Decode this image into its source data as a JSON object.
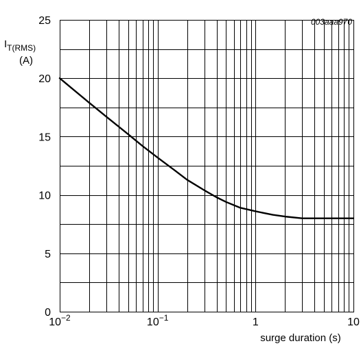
{
  "chart_data": {
    "type": "line",
    "reference_code": "003aaa970",
    "ylabel": {
      "main": "I",
      "subscript": "T(RMS)",
      "unit": "(A)"
    },
    "xlabel": "surge duration (s)",
    "x_scale": "log",
    "xlim": [
      0.01,
      10
    ],
    "ylim": [
      0,
      25
    ],
    "grid": true,
    "x_ticks": [
      {
        "value": 0.01,
        "base": "10",
        "exp": "−2"
      },
      {
        "value": 0.1,
        "base": "10",
        "exp": "−1"
      },
      {
        "value": 1,
        "base": "1",
        "exp": ""
      },
      {
        "value": 10,
        "base": "10",
        "exp": ""
      }
    ],
    "y_ticks": [
      {
        "value": 0,
        "label": "0"
      },
      {
        "value": 5,
        "label": "5"
      },
      {
        "value": 10,
        "label": "10"
      },
      {
        "value": 15,
        "label": "15"
      },
      {
        "value": 20,
        "label": "20"
      },
      {
        "value": 25,
        "label": "25"
      }
    ],
    "y_minor_step": 2.5,
    "series": [
      {
        "x": [
          0.01,
          0.02,
          0.03,
          0.05,
          0.07,
          0.1,
          0.15,
          0.2,
          0.3,
          0.4,
          0.5,
          0.7,
          1,
          1.5,
          2,
          3,
          5,
          7,
          10
        ],
        "y": [
          20,
          17.9,
          16.7,
          15.2,
          14.2,
          13.2,
          12.1,
          11.3,
          10.4,
          9.8,
          9.4,
          8.9,
          8.6,
          8.3,
          8.15,
          8.0,
          8.0,
          8.0,
          8.0
        ]
      }
    ]
  }
}
